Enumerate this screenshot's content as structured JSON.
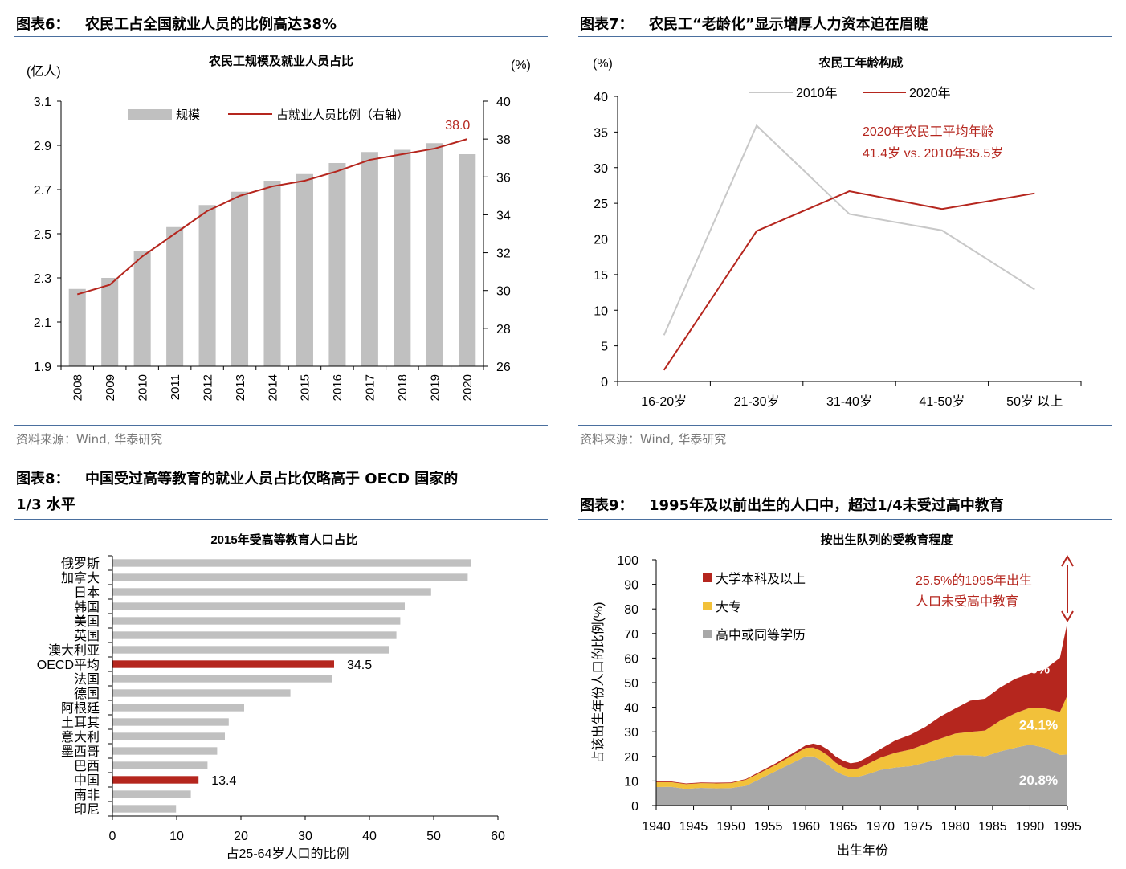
{
  "fig6": {
    "label": "图表6：",
    "title": "农民工占全国就业人员的比例高达38%",
    "source": "资料来源：Wind, 华泰研究",
    "chart_data": {
      "type": "bar",
      "title": "农民工规模及就业人员占比",
      "left_unit": "(亿人)",
      "right_unit": "(%)",
      "categories": [
        "2008",
        "2009",
        "2010",
        "2011",
        "2012",
        "2013",
        "2014",
        "2015",
        "2016",
        "2017",
        "2018",
        "2019",
        "2020"
      ],
      "series": [
        {
          "name": "规模",
          "type": "bar",
          "axis": "left",
          "color": "#c0c0c0",
          "values": [
            2.25,
            2.3,
            2.42,
            2.53,
            2.63,
            2.69,
            2.74,
            2.77,
            2.82,
            2.87,
            2.88,
            2.91,
            2.86
          ]
        },
        {
          "name": "占就业人员比例（右轴）",
          "type": "line",
          "axis": "right",
          "color": "#b5261e",
          "values": [
            29.8,
            30.3,
            31.8,
            33.0,
            34.2,
            35.0,
            35.5,
            35.8,
            36.3,
            36.9,
            37.2,
            37.5,
            38.0
          ]
        }
      ],
      "ylim_left": [
        1.9,
        3.1
      ],
      "left_ticks": [
        "1.9",
        "2.1",
        "2.3",
        "2.5",
        "2.7",
        "2.9",
        "3.1"
      ],
      "ylim_right": [
        26,
        40
      ],
      "right_ticks": [
        "26",
        "28",
        "30",
        "32",
        "34",
        "36",
        "38",
        "40"
      ],
      "annotation": "38.0",
      "legend_position": "top"
    }
  },
  "fig7": {
    "label": "图表7：",
    "title": "农民工“老龄化”显示增厚人力资本迫在眉睫",
    "source": "资料来源：Wind, 华泰研究",
    "chart_data": {
      "type": "line",
      "title": "农民工年龄构成",
      "y_unit": "(%)",
      "categories": [
        "16-20岁",
        "21-30岁",
        "31-40岁",
        "41-50岁",
        "50岁 以上"
      ],
      "series": [
        {
          "name": "2010年",
          "color": "#c8c8c8",
          "values": [
            6.5,
            35.9,
            23.5,
            21.2,
            12.9
          ]
        },
        {
          "name": "2020年",
          "color": "#b5261e",
          "values": [
            1.6,
            21.1,
            26.7,
            24.2,
            26.4
          ]
        }
      ],
      "ylim": [
        0,
        40
      ],
      "y_ticks": [
        "0",
        "5",
        "10",
        "15",
        "20",
        "25",
        "30",
        "35",
        "40"
      ],
      "annotation_lines": [
        "2020年农民工平均年龄",
        "41.4岁 vs. 2010年35.5岁"
      ],
      "legend_position": "top"
    }
  },
  "fig8": {
    "label": "图表8：",
    "title_line1": "中国受过高等教育的就业人员占比仅略高于 OECD 国家的",
    "title_line2": "1/3 水平",
    "chart_data": {
      "type": "bar",
      "orientation": "horizontal",
      "title": "2015年受高等教育人口占比",
      "xlabel": "占25-64岁人口的比例",
      "categories": [
        "俄罗斯",
        "加拿大",
        "日本",
        "韩国",
        "美国",
        "英国",
        "澳大利亚",
        "OECD平均",
        "法国",
        "德国",
        "阿根廷",
        "土耳其",
        "意大利",
        "墨西哥",
        "巴西",
        "中国",
        "南非",
        "印尼"
      ],
      "values": [
        55.8,
        55.3,
        49.6,
        45.5,
        44.8,
        44.2,
        43.0,
        34.5,
        34.2,
        27.7,
        20.5,
        18.1,
        17.5,
        16.3,
        14.8,
        13.4,
        12.2,
        9.9
      ],
      "highlight": [
        "OECD平均",
        "中国"
      ],
      "highlight_color": "#b5261e",
      "bar_color": "#c0c0c0",
      "data_labels": {
        "OECD平均": "34.5",
        "中国": "13.4"
      },
      "xlim": [
        0,
        60
      ],
      "x_ticks": [
        "0",
        "10",
        "20",
        "30",
        "40",
        "50",
        "60"
      ]
    }
  },
  "fig9": {
    "label": "图表9：",
    "title": "1995年及以前出生的人口中，超过1/4未受过高中教育",
    "chart_data": {
      "type": "area",
      "stacked": true,
      "title": "按出生队列的受教育程度",
      "ylabel": "占该出生年份人口的比例(%)",
      "xlabel": "出生年份",
      "x": [
        1940,
        1942,
        1944,
        1946,
        1948,
        1950,
        1952,
        1954,
        1956,
        1958,
        1960,
        1961,
        1962,
        1963,
        1964,
        1965,
        1966,
        1967,
        1968,
        1970,
        1972,
        1974,
        1976,
        1978,
        1980,
        1982,
        1984,
        1986,
        1988,
        1990,
        1992,
        1994,
        1995
      ],
      "series": [
        {
          "name": "高中或同等学历",
          "color": "#a8a8a8",
          "values": [
            7.5,
            7.6,
            6.8,
            7.2,
            7.0,
            7.1,
            8.0,
            11.0,
            14.0,
            17.0,
            20.0,
            20.0,
            18.5,
            16.5,
            14.0,
            12.5,
            11.5,
            11.7,
            12.5,
            14.5,
            15.5,
            16.0,
            17.5,
            19.0,
            20.5,
            20.5,
            20.0,
            22.0,
            23.5,
            24.8,
            23.5,
            20.6,
            20.8
          ]
        },
        {
          "name": "大专",
          "color": "#f2c13a",
          "values": [
            2.0,
            1.9,
            1.9,
            1.9,
            2.0,
            2.0,
            2.5,
            2.5,
            2.6,
            3.0,
            3.5,
            3.6,
            3.8,
            3.8,
            3.5,
            3.2,
            3.2,
            3.4,
            4.0,
            5.0,
            6.0,
            6.8,
            7.5,
            8.2,
            8.8,
            9.5,
            10.5,
            12.5,
            14.0,
            15.0,
            16.0,
            17.5,
            24.1
          ]
        },
        {
          "name": "大学本科及以上",
          "color": "#b5261e",
          "values": [
            0.3,
            0.3,
            0.3,
            0.3,
            0.3,
            0.3,
            0.3,
            0.5,
            0.6,
            0.8,
            1.0,
            1.6,
            2.2,
            2.4,
            2.5,
            2.6,
            2.5,
            2.6,
            2.8,
            3.5,
            5.0,
            6.0,
            7.0,
            9.0,
            10.2,
            12.7,
            13.0,
            13.5,
            14.0,
            14.0,
            16.0,
            22.0,
            29.6
          ]
        }
      ],
      "data_labels": [
        "29.6%",
        "24.1%",
        "20.8%"
      ],
      "ylim": [
        0,
        100
      ],
      "y_ticks": [
        "0",
        "10",
        "20",
        "30",
        "40",
        "50",
        "60",
        "70",
        "80",
        "90",
        "100"
      ],
      "x_ticks": [
        "1940",
        "1945",
        "1950",
        "1955",
        "1960",
        "1965",
        "1970",
        "1975",
        "1980",
        "1985",
        "1990",
        "1995"
      ],
      "annotation_lines": [
        "25.5%的1995年出生",
        "人口未受高中教育"
      ],
      "legend_position": "top-left"
    }
  }
}
